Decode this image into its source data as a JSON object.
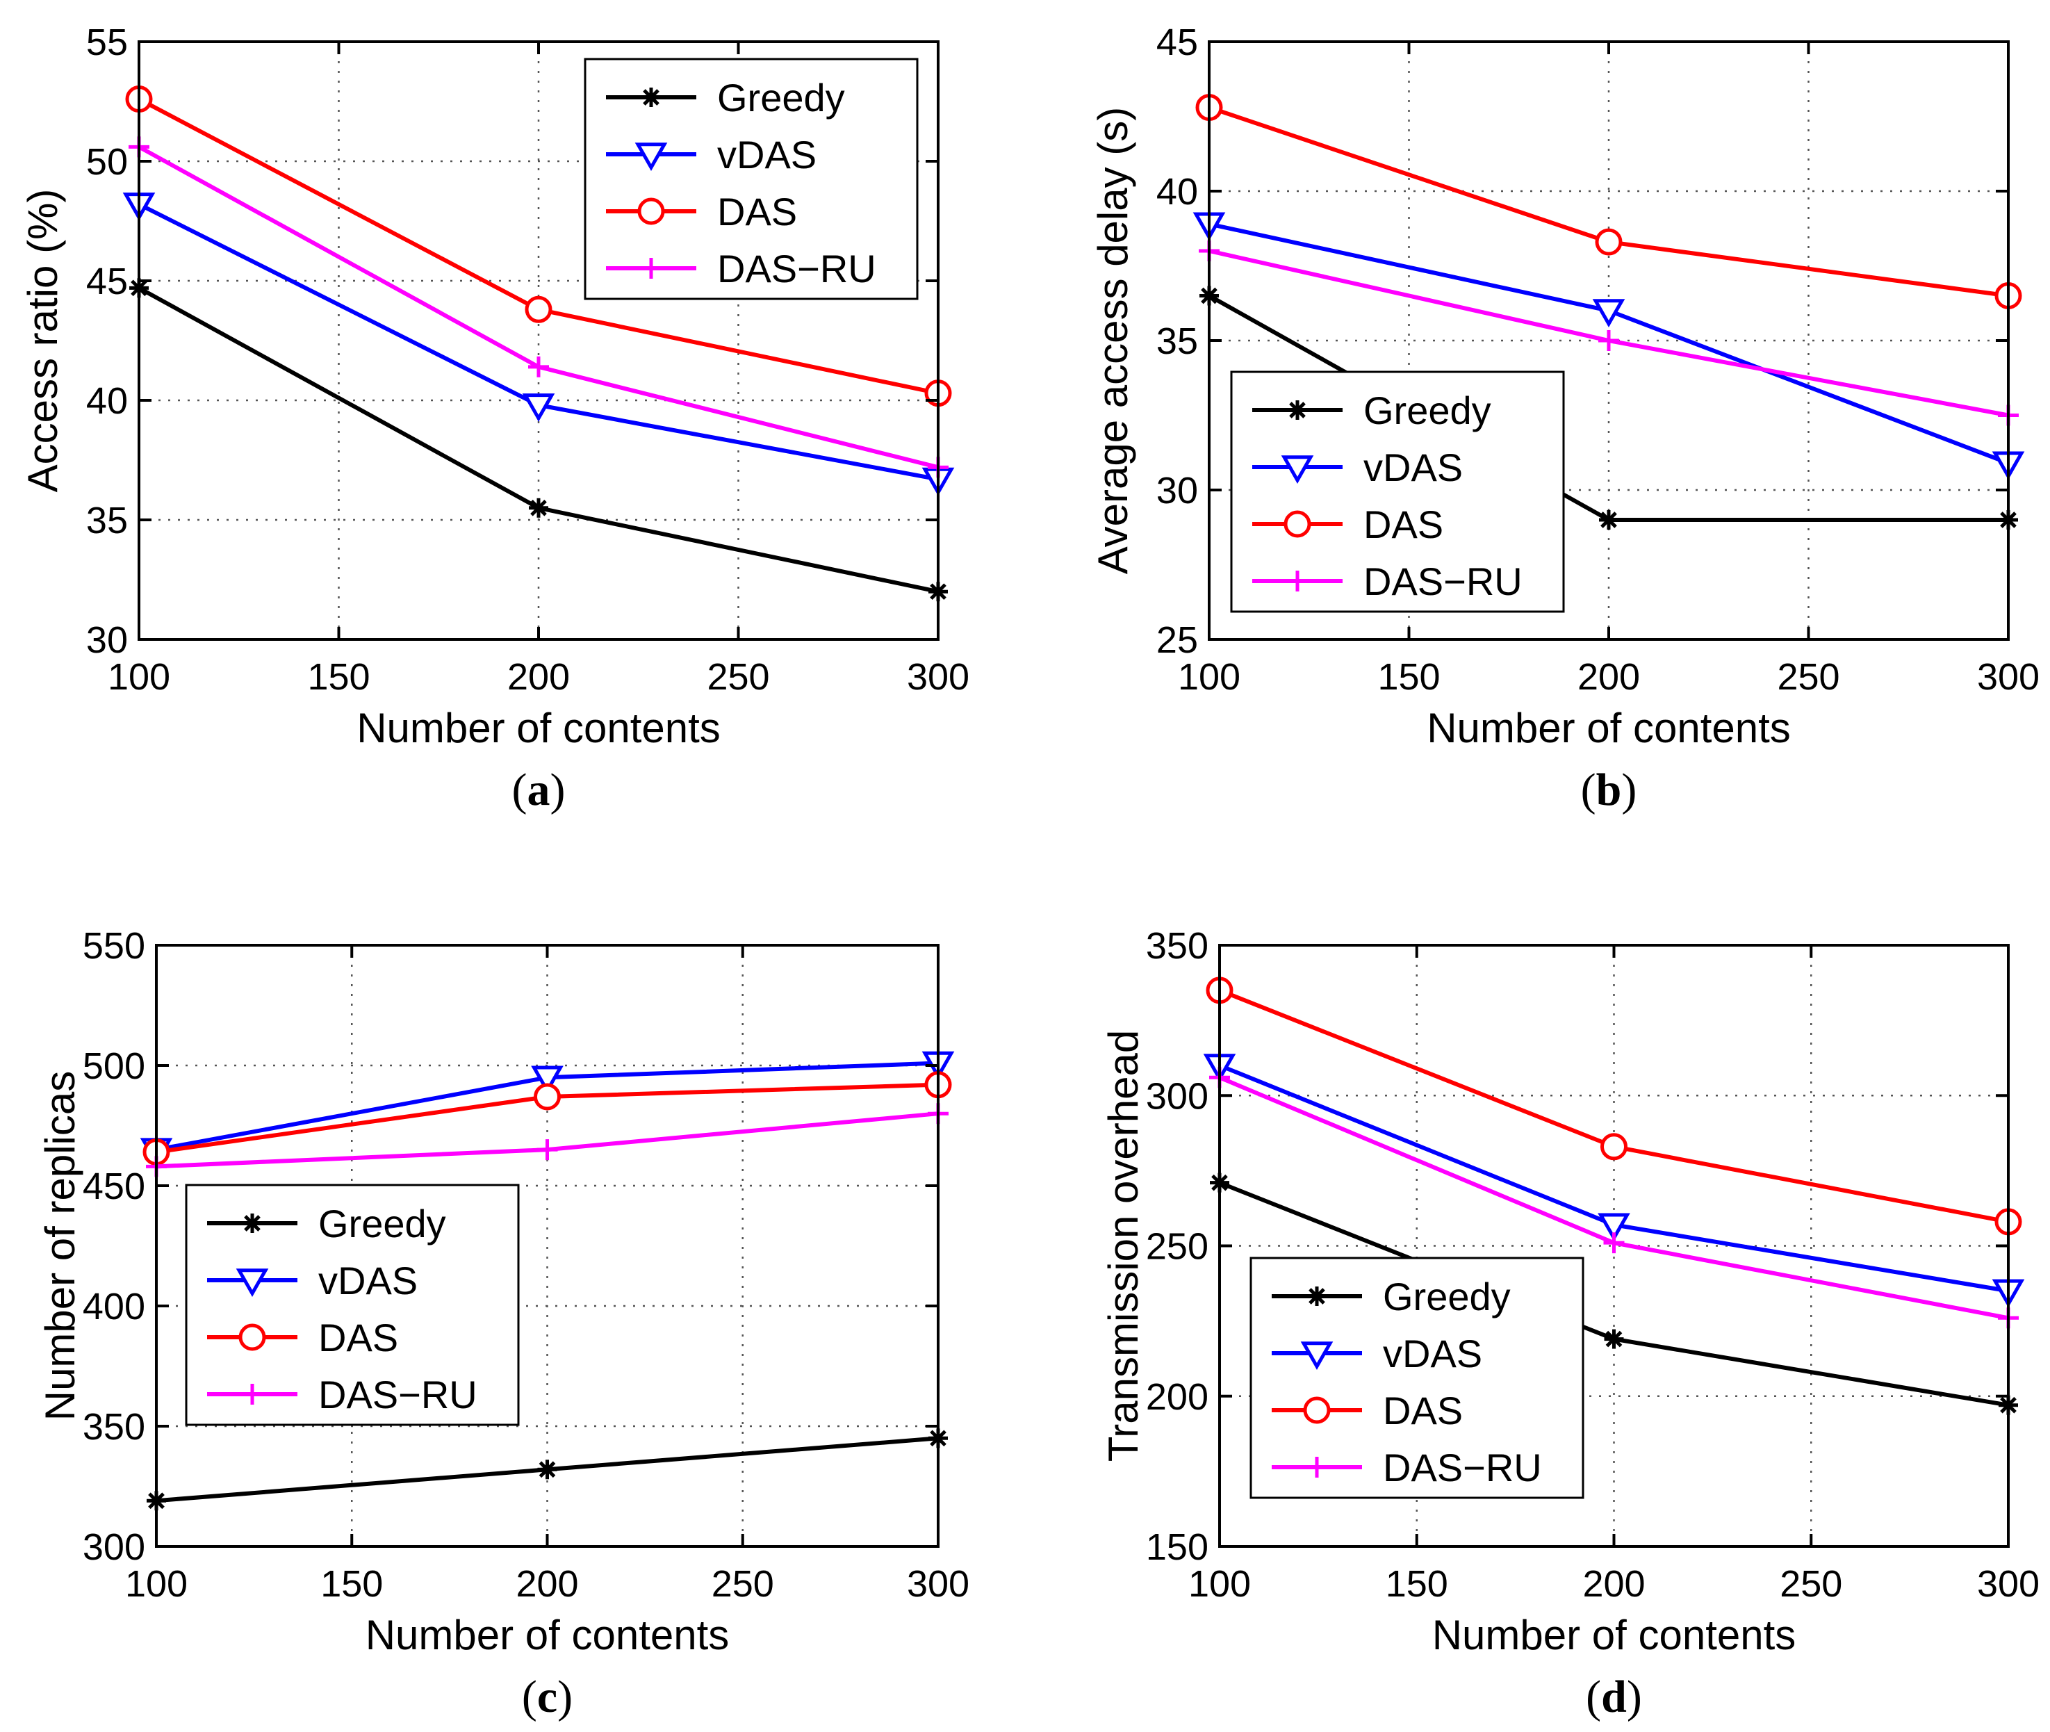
{
  "figure": {
    "colors": {
      "greedy": "#000000",
      "vdas": "#0000ff",
      "das": "#ff0000",
      "dasru": "#ff00ff",
      "grid": "#555555",
      "axis": "#000000"
    }
  },
  "chart_data": [
    {
      "id": "a",
      "type": "line",
      "panel_label": "a",
      "xlabel": "Number of contents",
      "ylabel": "Access ratio (%)",
      "xlim": [
        100,
        300
      ],
      "ylim": [
        30,
        55
      ],
      "xticks": [
        100,
        150,
        200,
        250,
        300
      ],
      "yticks": [
        30,
        35,
        40,
        45,
        50,
        55
      ],
      "grid": true,
      "legend_position": "top-right",
      "x": [
        100,
        200,
        300
      ],
      "series": [
        {
          "name": "Greedy",
          "key": "greedy",
          "marker": "star",
          "values": [
            44.7,
            35.5,
            32.0
          ]
        },
        {
          "name": "vDAS",
          "key": "vdas",
          "marker": "triangle-down",
          "values": [
            48.2,
            39.8,
            36.7
          ]
        },
        {
          "name": "DAS",
          "key": "das",
          "marker": "circle",
          "values": [
            52.6,
            43.8,
            40.3
          ]
        },
        {
          "name": "DAS−RU",
          "key": "dasru",
          "marker": "plus",
          "values": [
            50.6,
            41.4,
            37.2
          ]
        }
      ]
    },
    {
      "id": "b",
      "type": "line",
      "panel_label": "b",
      "xlabel": "Number of contents",
      "ylabel": "Average access delay (s)",
      "xlim": [
        100,
        300
      ],
      "ylim": [
        25,
        45
      ],
      "xticks": [
        100,
        150,
        200,
        250,
        300
      ],
      "yticks": [
        25,
        30,
        35,
        40,
        45
      ],
      "grid": true,
      "legend_position": "bottom-left",
      "x": [
        100,
        200,
        300
      ],
      "series": [
        {
          "name": "Greedy",
          "key": "greedy",
          "marker": "star",
          "values": [
            36.5,
            29.0,
            29.0
          ]
        },
        {
          "name": "vDAS",
          "key": "vdas",
          "marker": "triangle-down",
          "values": [
            38.9,
            36.0,
            30.9
          ]
        },
        {
          "name": "DAS",
          "key": "das",
          "marker": "circle",
          "values": [
            42.8,
            38.3,
            36.5
          ]
        },
        {
          "name": "DAS−RU",
          "key": "dasru",
          "marker": "plus",
          "values": [
            38.0,
            35.0,
            32.5
          ]
        }
      ]
    },
    {
      "id": "c",
      "type": "line",
      "panel_label": "c",
      "xlabel": "Number of contents",
      "ylabel": "Number of replicas",
      "xlim": [
        100,
        300
      ],
      "ylim": [
        300,
        550
      ],
      "xticks": [
        100,
        150,
        200,
        250,
        300
      ],
      "yticks": [
        300,
        350,
        400,
        450,
        500,
        550
      ],
      "grid": true,
      "legend_position": "middle-left",
      "x": [
        100,
        200,
        300
      ],
      "series": [
        {
          "name": "Greedy",
          "key": "greedy",
          "marker": "star",
          "values": [
            319,
            332,
            345
          ]
        },
        {
          "name": "vDAS",
          "key": "vdas",
          "marker": "triangle-down",
          "values": [
            465,
            495,
            501
          ]
        },
        {
          "name": "DAS",
          "key": "das",
          "marker": "circle",
          "values": [
            464,
            487,
            492
          ]
        },
        {
          "name": "DAS−RU",
          "key": "dasru",
          "marker": "plus",
          "values": [
            458,
            465,
            480
          ]
        }
      ]
    },
    {
      "id": "d",
      "type": "line",
      "panel_label": "d",
      "xlabel": "Number of contents",
      "ylabel": "Transmission overhead",
      "xlim": [
        100,
        300
      ],
      "ylim": [
        150,
        350
      ],
      "xticks": [
        100,
        150,
        200,
        250,
        300
      ],
      "yticks": [
        150,
        200,
        250,
        300,
        350
      ],
      "grid": true,
      "legend_position": "bottom-left",
      "x": [
        100,
        200,
        300
      ],
      "series": [
        {
          "name": "Greedy",
          "key": "greedy",
          "marker": "star",
          "values": [
            271,
            219,
            197
          ]
        },
        {
          "name": "vDAS",
          "key": "vdas",
          "marker": "triangle-down",
          "values": [
            310,
            257,
            235
          ]
        },
        {
          "name": "DAS",
          "key": "das",
          "marker": "circle",
          "values": [
            335,
            283,
            258
          ]
        },
        {
          "name": "DAS−RU",
          "key": "dasru",
          "marker": "plus",
          "values": [
            306,
            251,
            226
          ]
        }
      ]
    }
  ]
}
